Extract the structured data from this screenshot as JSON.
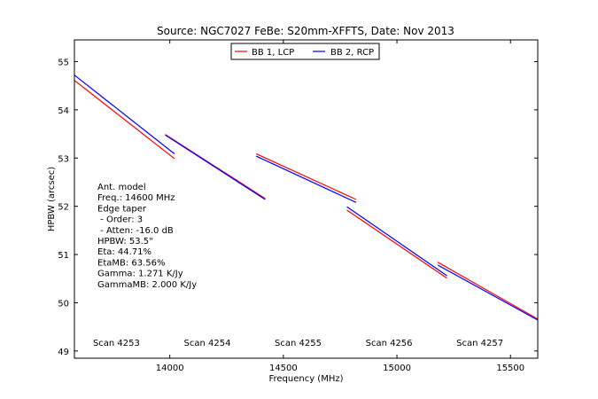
{
  "chart_data": {
    "type": "line",
    "title": "Source: NGC7027 FeBe: S20mm-XFFTS, Date: Nov 2013",
    "xlabel": "Frequency (MHz)",
    "ylabel": "HPBW (arcsec)",
    "xlim": [
      13580,
      15620
    ],
    "ylim": [
      48.85,
      55.45
    ],
    "xticks": [
      14000,
      14500,
      15000,
      15500
    ],
    "yticks": [
      49,
      50,
      51,
      52,
      53,
      54,
      55
    ],
    "grid": false,
    "legend_position": "top-center",
    "series": [
      {
        "name": "BB 1, LCP",
        "color": "#ff0000",
        "segments": [
          [
            [
              13580,
              54.61
            ],
            [
              14020,
              52.99
            ]
          ],
          [
            [
              13980,
              53.49
            ],
            [
              14420,
              52.16
            ]
          ],
          [
            [
              14380,
              53.09
            ],
            [
              14820,
              52.14
            ]
          ],
          [
            [
              14780,
              51.92
            ],
            [
              15220,
              50.51
            ]
          ],
          [
            [
              15180,
              50.84
            ],
            [
              15620,
              49.66
            ]
          ]
        ]
      },
      {
        "name": "BB 2, RCP",
        "color": "#0000ff",
        "segments": [
          [
            [
              13580,
              54.72
            ],
            [
              14020,
              53.09
            ]
          ],
          [
            [
              13980,
              53.48
            ],
            [
              14420,
              52.14
            ]
          ],
          [
            [
              14380,
              53.04
            ],
            [
              14820,
              52.08
            ]
          ],
          [
            [
              14780,
              51.99
            ],
            [
              15220,
              50.56
            ]
          ],
          [
            [
              15180,
              50.78
            ],
            [
              15620,
              49.64
            ]
          ]
        ]
      }
    ],
    "scan_labels": [
      {
        "text": "Scan 4253",
        "x": 13765
      },
      {
        "text": "Scan 4254",
        "x": 14165
      },
      {
        "text": "Scan 4255",
        "x": 14565
      },
      {
        "text": "Scan 4256",
        "x": 14965
      },
      {
        "text": "Scan 4257",
        "x": 15365
      }
    ],
    "annotation_lines": [
      "Ant. model",
      "Freq.: 14600 MHz",
      "Edge taper",
      " - Order: 3",
      " - Atten: -16.0 dB",
      "HPBW: 53.5\"",
      "Eta: 44.71%",
      "EtaMB: 63.56%",
      "Gamma: 1.271 K/Jy",
      "GammaMB: 2.000 K/Jy"
    ]
  }
}
